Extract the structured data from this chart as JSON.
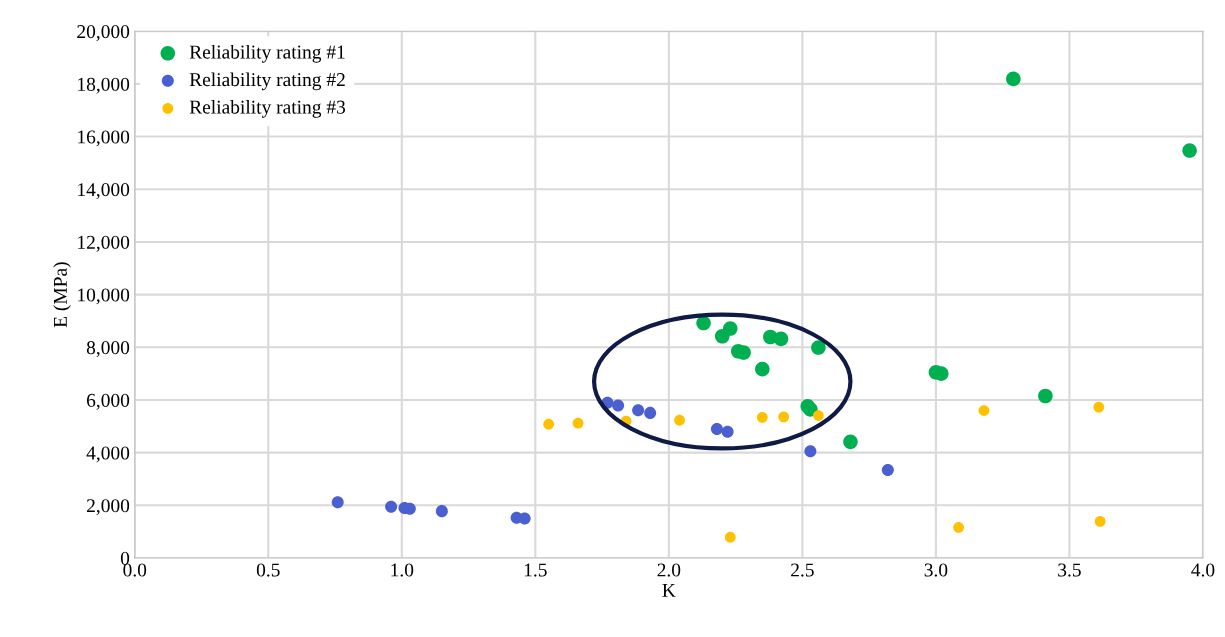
{
  "chart_data": {
    "type": "scatter",
    "xlabel": "K",
    "ylabel": "E (MPa)",
    "xlim": [
      0,
      4
    ],
    "ylim": [
      0,
      20000
    ],
    "xticks": [
      {
        "value": 0,
        "label": "0.0"
      },
      {
        "value": 0.5,
        "label": "0.5"
      },
      {
        "value": 1,
        "label": "1.0"
      },
      {
        "value": 1.5,
        "label": "1.5"
      },
      {
        "value": 2,
        "label": "2.0"
      },
      {
        "value": 2.5,
        "label": "2.5"
      },
      {
        "value": 3,
        "label": "3.0"
      },
      {
        "value": 3.5,
        "label": "3.5"
      },
      {
        "value": 4,
        "label": "4.0"
      }
    ],
    "yticks": [
      0,
      {
        "value": 2000,
        "label": "2,000"
      },
      {
        "value": 4000,
        "label": "4,000"
      },
      {
        "value": 6000,
        "label": "6,000"
      },
      {
        "value": 8000,
        "label": "8,000"
      },
      {
        "value": 10000,
        "label": "10,000"
      },
      {
        "value": 12000,
        "label": "12,000"
      },
      {
        "value": 14000,
        "label": "14,000"
      },
      {
        "value": 16000,
        "label": "16,000"
      },
      {
        "value": 18000,
        "label": "18,000"
      },
      {
        "value": 20000,
        "label": "20,000"
      }
    ],
    "grid": true,
    "legend": "top left",
    "marker": "circle",
    "series": [
      {
        "name": "Reliability rating #1",
        "color": "#00b050",
        "x": [
          2.13,
          2.23,
          2.2,
          2.26,
          2.28,
          2.38,
          2.42,
          2.56,
          2.35,
          2.52,
          2.53,
          2.68,
          3.29,
          3.95,
          3.0,
          3.02,
          3.41
        ],
        "values": [
          8920,
          8710,
          8420,
          7850,
          7800,
          8390,
          8320,
          7990,
          7170,
          5760,
          5640,
          4410,
          18190,
          15470,
          7050,
          7000,
          6150
        ]
      },
      {
        "name": "Reliability rating #2",
        "color": "#4a5fd0",
        "x": [
          1.77,
          1.81,
          1.885,
          1.93,
          2.18,
          2.22,
          2.53,
          2.82,
          0.76,
          0.96,
          1.01,
          1.03,
          1.15,
          1.43,
          1.46
        ],
        "values": [
          5890,
          5790,
          5610,
          5510,
          4900,
          4790,
          4050,
          3340,
          2120,
          1950,
          1900,
          1870,
          1780,
          1530,
          1500
        ]
      },
      {
        "name": "Reliability rating #3",
        "color": "#ffc000",
        "x": [
          1.55,
          1.66,
          1.84,
          2.04,
          2.35,
          2.43,
          2.56,
          2.23,
          3.18,
          3.61,
          3.085,
          3.615
        ],
        "values": [
          5080,
          5120,
          5200,
          5230,
          5340,
          5360,
          5410,
          790,
          5600,
          5730,
          1160,
          1390
        ]
      }
    ]
  }
}
